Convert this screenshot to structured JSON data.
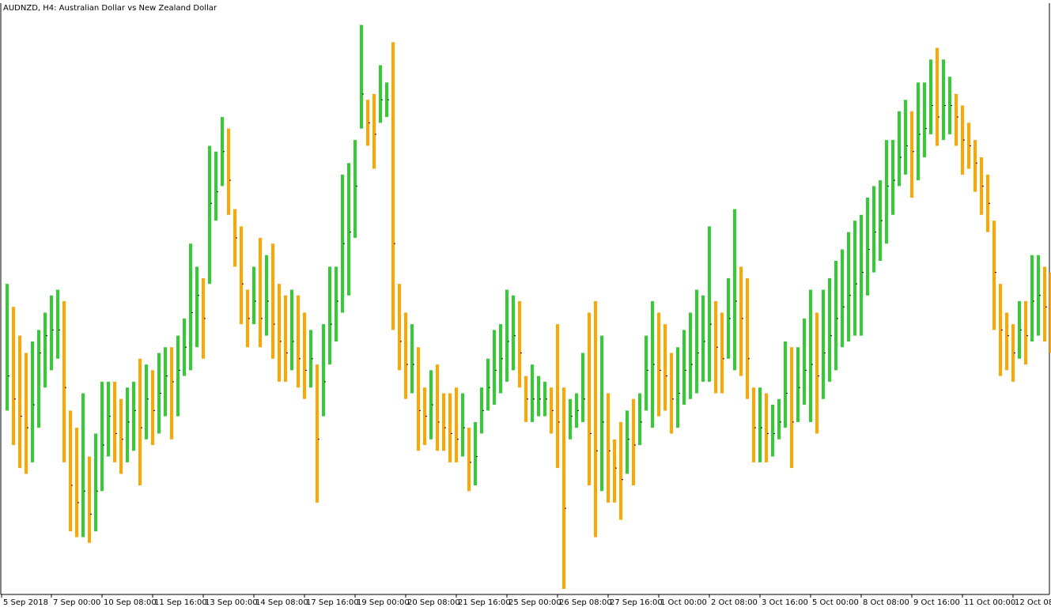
{
  "window": {
    "title": "AUDNZD, H4:  Australian Dollar vs New Zealand Dollar"
  },
  "colors": {
    "up": "#32cd32",
    "down": "#ffa500",
    "background": "#ffffff",
    "grid": "none",
    "axis": "#000000"
  },
  "chart_data": {
    "type": "bar",
    "style": "hlc-bars",
    "symbol": "AUDNZD",
    "timeframe": "H4",
    "title": "AUDNZD, H4:  Australian Dollar vs New Zealand Dollar",
    "xlabel": "",
    "ylabel": "",
    "grid": false,
    "x_tick_labels": [
      "5 Sep 2018",
      "7 Sep 00:00",
      "10 Sep 08:00",
      "11 Sep 16:00",
      "13 Sep 00:00",
      "14 Sep 08:00",
      "17 Sep 16:00",
      "19 Sep 00:00",
      "20 Sep 08:00",
      "21 Sep 16:00",
      "25 Sep 00:00",
      "26 Sep 08:00",
      "27 Sep 16:00",
      "1 Oct 00:00",
      "2 Oct 08:00",
      "3 Oct 16:00",
      "5 Oct 00:00",
      "8 Oct 08:00",
      "9 Oct 16:00",
      "11 Oct 00:00",
      "12 Oct 08:00"
    ],
    "x_tick_bar_index": [
      0,
      8,
      16,
      24,
      32,
      40,
      48,
      56,
      64,
      72,
      80,
      88,
      96,
      104,
      112,
      120,
      128,
      136,
      144,
      152,
      160
    ],
    "ylim": [
      0,
      100
    ],
    "bars": [
      {
        "h": 53,
        "l": 31,
        "c": 37
      },
      {
        "h": 49,
        "l": 25,
        "c": 33
      },
      {
        "h": 44,
        "l": 21,
        "c": 30
      },
      {
        "h": 41,
        "l": 20,
        "c": 28
      },
      {
        "h": 43,
        "l": 22,
        "c": 32
      },
      {
        "h": 45,
        "l": 28,
        "c": 41
      },
      {
        "h": 48,
        "l": 35,
        "c": 44
      },
      {
        "h": 51,
        "l": 38,
        "c": 45
      },
      {
        "h": 52,
        "l": 40,
        "c": 45
      },
      {
        "h": 50,
        "l": 22,
        "c": 35
      },
      {
        "h": 31,
        "l": 10,
        "c": 18
      },
      {
        "h": 28,
        "l": 9,
        "c": 15
      },
      {
        "h": 34,
        "l": 9,
        "c": 17
      },
      {
        "h": 23,
        "l": 8,
        "c": 13
      },
      {
        "h": 27,
        "l": 10,
        "c": 17
      },
      {
        "h": 36,
        "l": 17,
        "c": 25
      },
      {
        "h": 36,
        "l": 23,
        "c": 30
      },
      {
        "h": 36,
        "l": 22,
        "c": 27
      },
      {
        "h": 33,
        "l": 20,
        "c": 26
      },
      {
        "h": 35,
        "l": 22,
        "c": 29
      },
      {
        "h": 36,
        "l": 24,
        "c": 31
      },
      {
        "h": 40,
        "l": 18,
        "c": 28
      },
      {
        "h": 39,
        "l": 26,
        "c": 33
      },
      {
        "h": 38,
        "l": 25,
        "c": 31
      },
      {
        "h": 41,
        "l": 27,
        "c": 34
      },
      {
        "h": 42,
        "l": 30,
        "c": 37
      },
      {
        "h": 42,
        "l": 26,
        "c": 36
      },
      {
        "h": 44,
        "l": 30,
        "c": 38
      },
      {
        "h": 47,
        "l": 37,
        "c": 42
      },
      {
        "h": 60,
        "l": 38,
        "c": 48
      },
      {
        "h": 56,
        "l": 42,
        "c": 51
      },
      {
        "h": 54,
        "l": 40,
        "c": 47
      },
      {
        "h": 77,
        "l": 53,
        "c": 67
      },
      {
        "h": 76,
        "l": 64,
        "c": 69
      },
      {
        "h": 82,
        "l": 70,
        "c": 76
      },
      {
        "h": 80,
        "l": 65,
        "c": 71
      },
      {
        "h": 66,
        "l": 56,
        "c": 61
      },
      {
        "h": 63,
        "l": 46,
        "c": 53
      },
      {
        "h": 52,
        "l": 42,
        "c": 47
      },
      {
        "h": 56,
        "l": 46,
        "c": 50
      },
      {
        "h": 61,
        "l": 42,
        "c": 47
      },
      {
        "h": 58,
        "l": 44,
        "c": 50
      },
      {
        "h": 60,
        "l": 40,
        "c": 46
      },
      {
        "h": 53,
        "l": 36,
        "c": 43
      },
      {
        "h": 51,
        "l": 36,
        "c": 41
      },
      {
        "h": 52,
        "l": 38,
        "c": 43
      },
      {
        "h": 51,
        "l": 35,
        "c": 40
      },
      {
        "h": 48,
        "l": 33,
        "c": 38
      },
      {
        "h": 45,
        "l": 35,
        "c": 40
      },
      {
        "h": 39,
        "l": 15,
        "c": 26
      },
      {
        "h": 46,
        "l": 30,
        "c": 36
      },
      {
        "h": 56,
        "l": 39,
        "c": 46
      },
      {
        "h": 56,
        "l": 43,
        "c": 50
      },
      {
        "h": 72,
        "l": 48,
        "c": 60
      },
      {
        "h": 74,
        "l": 51,
        "c": 62
      },
      {
        "h": 78,
        "l": 61,
        "c": 70
      },
      {
        "h": 98,
        "l": 80,
        "c": 86
      },
      {
        "h": 85,
        "l": 77,
        "c": 81
      },
      {
        "h": 86,
        "l": 73,
        "c": 79
      },
      {
        "h": 91,
        "l": 81,
        "c": 85
      },
      {
        "h": 88,
        "l": 82,
        "c": 85
      },
      {
        "h": 95,
        "l": 45,
        "c": 60
      },
      {
        "h": 53,
        "l": 38,
        "c": 43
      },
      {
        "h": 48,
        "l": 33,
        "c": 39
      },
      {
        "h": 46,
        "l": 34,
        "c": 39
      },
      {
        "h": 42,
        "l": 24,
        "c": 31
      },
      {
        "h": 35,
        "l": 25,
        "c": 30
      },
      {
        "h": 38,
        "l": 26,
        "c": 32
      },
      {
        "h": 39,
        "l": 24,
        "c": 29
      },
      {
        "h": 34,
        "l": 24,
        "c": 28
      },
      {
        "h": 34,
        "l": 22,
        "c": 27
      },
      {
        "h": 35,
        "l": 22,
        "c": 26
      },
      {
        "h": 34,
        "l": 23,
        "c": 28
      },
      {
        "h": 28,
        "l": 17,
        "c": 22
      },
      {
        "h": 29,
        "l": 18,
        "c": 23
      },
      {
        "h": 35,
        "l": 27,
        "c": 31
      },
      {
        "h": 40,
        "l": 31,
        "c": 35
      },
      {
        "h": 45,
        "l": 32,
        "c": 38
      },
      {
        "h": 46,
        "l": 34,
        "c": 40
      },
      {
        "h": 52,
        "l": 36,
        "c": 43
      },
      {
        "h": 51,
        "l": 38,
        "c": 44
      },
      {
        "h": 50,
        "l": 35,
        "c": 41
      },
      {
        "h": 37,
        "l": 29,
        "c": 33
      },
      {
        "h": 39,
        "l": 29,
        "c": 33
      },
      {
        "h": 37,
        "l": 30,
        "c": 33
      },
      {
        "h": 36,
        "l": 30,
        "c": 33
      },
      {
        "h": 35,
        "l": 27,
        "c": 31
      },
      {
        "h": 46,
        "l": 21,
        "c": 29
      },
      {
        "h": 35,
        "l": 0,
        "c": 14
      },
      {
        "h": 33,
        "l": 26,
        "c": 30
      },
      {
        "h": 34,
        "l": 28,
        "c": 31
      },
      {
        "h": 41,
        "l": 29,
        "c": 33
      },
      {
        "h": 48,
        "l": 18,
        "c": 27
      },
      {
        "h": 50,
        "l": 9,
        "c": 24
      },
      {
        "h": 44,
        "l": 17,
        "c": 29
      },
      {
        "h": 34,
        "l": 15,
        "c": 24
      },
      {
        "h": 26,
        "l": 15,
        "c": 21
      },
      {
        "h": 29,
        "l": 12,
        "c": 19
      },
      {
        "h": 31,
        "l": 20,
        "c": 26
      },
      {
        "h": 33,
        "l": 18,
        "c": 25
      },
      {
        "h": 34,
        "l": 25,
        "c": 29
      },
      {
        "h": 44,
        "l": 31,
        "c": 38
      },
      {
        "h": 50,
        "l": 28,
        "c": 39
      },
      {
        "h": 48,
        "l": 30,
        "c": 38
      },
      {
        "h": 46,
        "l": 31,
        "c": 37
      },
      {
        "h": 41,
        "l": 27,
        "c": 33
      },
      {
        "h": 42,
        "l": 28,
        "c": 34
      },
      {
        "h": 45,
        "l": 32,
        "c": 38
      },
      {
        "h": 48,
        "l": 33,
        "c": 39
      },
      {
        "h": 52,
        "l": 34,
        "c": 41
      },
      {
        "h": 51,
        "l": 36,
        "c": 43
      },
      {
        "h": 63,
        "l": 36,
        "c": 46
      },
      {
        "h": 50,
        "l": 34,
        "c": 42
      },
      {
        "h": 48,
        "l": 34,
        "c": 40
      },
      {
        "h": 54,
        "l": 40,
        "c": 47
      },
      {
        "h": 66,
        "l": 38,
        "c": 50
      },
      {
        "h": 56,
        "l": 37,
        "c": 47
      },
      {
        "h": 54,
        "l": 33,
        "c": 40
      },
      {
        "h": 35,
        "l": 22,
        "c": 28
      },
      {
        "h": 35,
        "l": 22,
        "c": 28
      },
      {
        "h": 34,
        "l": 22,
        "c": 27
      },
      {
        "h": 32,
        "l": 23,
        "c": 27
      },
      {
        "h": 33,
        "l": 26,
        "c": 29
      },
      {
        "h": 43,
        "l": 28,
        "c": 34
      },
      {
        "h": 42,
        "l": 21,
        "c": 29
      },
      {
        "h": 42,
        "l": 29,
        "c": 35
      },
      {
        "h": 47,
        "l": 32,
        "c": 38
      },
      {
        "h": 52,
        "l": 29,
        "c": 39
      },
      {
        "h": 48,
        "l": 27,
        "c": 37
      },
      {
        "h": 52,
        "l": 33,
        "c": 41
      },
      {
        "h": 54,
        "l": 36,
        "c": 44
      },
      {
        "h": 57,
        "l": 38,
        "c": 47
      },
      {
        "h": 59,
        "l": 42,
        "c": 49
      },
      {
        "h": 62,
        "l": 43,
        "c": 51
      },
      {
        "h": 64,
        "l": 44,
        "c": 53
      },
      {
        "h": 65,
        "l": 44,
        "c": 55
      },
      {
        "h": 68,
        "l": 51,
        "c": 59
      },
      {
        "h": 70,
        "l": 55,
        "c": 62
      },
      {
        "h": 71,
        "l": 57,
        "c": 64
      },
      {
        "h": 78,
        "l": 60,
        "c": 70
      },
      {
        "h": 78,
        "l": 65,
        "c": 71
      },
      {
        "h": 83,
        "l": 70,
        "c": 75
      },
      {
        "h": 85,
        "l": 72,
        "c": 77
      },
      {
        "h": 83,
        "l": 68,
        "c": 76
      },
      {
        "h": 88,
        "l": 71,
        "c": 79
      },
      {
        "h": 88,
        "l": 75,
        "c": 80
      },
      {
        "h": 92,
        "l": 79,
        "c": 84
      },
      {
        "h": 94,
        "l": 77,
        "c": 82
      },
      {
        "h": 92,
        "l": 78,
        "c": 84
      },
      {
        "h": 89,
        "l": 79,
        "c": 84
      },
      {
        "h": 86,
        "l": 77,
        "c": 82
      },
      {
        "h": 84,
        "l": 72,
        "c": 78
      },
      {
        "h": 81,
        "l": 73,
        "c": 77
      },
      {
        "h": 78,
        "l": 69,
        "c": 74
      },
      {
        "h": 75,
        "l": 65,
        "c": 70
      },
      {
        "h": 72,
        "l": 62,
        "c": 67
      },
      {
        "h": 64,
        "l": 45,
        "c": 55
      },
      {
        "h": 53,
        "l": 37,
        "c": 45
      },
      {
        "h": 48,
        "l": 38,
        "c": 44
      },
      {
        "h": 46,
        "l": 36,
        "c": 41
      },
      {
        "h": 50,
        "l": 40,
        "c": 45
      },
      {
        "h": 50,
        "l": 39,
        "c": 44
      },
      {
        "h": 58,
        "l": 43,
        "c": 50
      },
      {
        "h": 58,
        "l": 44,
        "c": 51
      },
      {
        "h": 56,
        "l": 43,
        "c": 49
      },
      {
        "h": 55,
        "l": 41,
        "c": 47
      },
      {
        "h": 54,
        "l": 40,
        "c": 46
      },
      {
        "h": 56,
        "l": 42,
        "c": 48
      },
      {
        "h": 55,
        "l": 41,
        "c": 47
      }
    ]
  }
}
